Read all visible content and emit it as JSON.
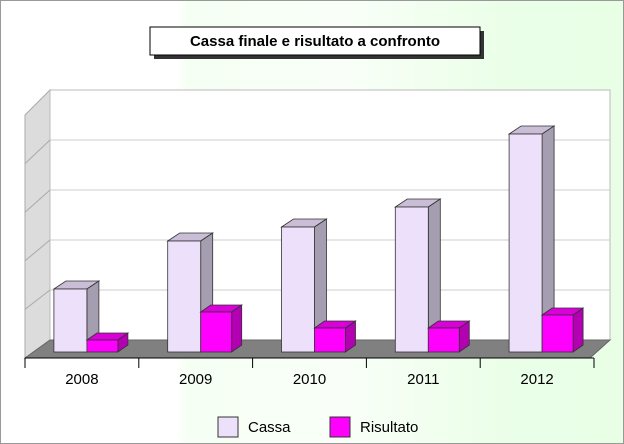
{
  "chart_data": {
    "type": "bar3d",
    "title": "Cassa finale e risultato a confronto",
    "categories": [
      "2008",
      "2009",
      "2010",
      "2011",
      "2012"
    ],
    "series": [
      {
        "name": "Cassa",
        "color": "#ece0fb",
        "values": [
          1.26,
          2.22,
          2.5,
          2.9,
          4.36
        ]
      },
      {
        "name": "Risultato",
        "color": "#ff00ff",
        "values": [
          0.24,
          0.8,
          0.48,
          0.48,
          0.74
        ]
      }
    ],
    "ylim": [
      0,
      5
    ],
    "yticks": [
      0,
      1,
      2,
      3,
      4,
      5
    ],
    "grid": true,
    "legend": "bottom"
  }
}
